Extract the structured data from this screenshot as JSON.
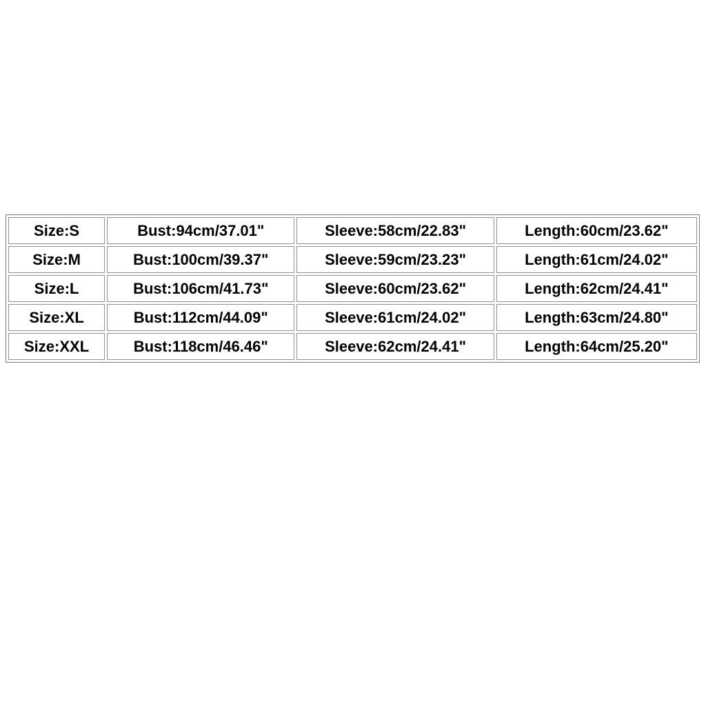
{
  "colors": {
    "page_bg": "#ffffff",
    "text_color": "#000000",
    "cell_border": "#8f8f8f",
    "outer_border": "#7d7d7d"
  },
  "size_chart": {
    "columns": [
      "size",
      "bust",
      "sleeve",
      "length"
    ],
    "rows": [
      {
        "cells": [
          "Size:S",
          "Bust:94cm/37.01\"",
          "Sleeve:58cm/22.83\"",
          "Length:60cm/23.62\""
        ]
      },
      {
        "cells": [
          "Size:M",
          "Bust:100cm/39.37\"",
          "Sleeve:59cm/23.23\"",
          "Length:61cm/24.02\""
        ]
      },
      {
        "cells": [
          "Size:L",
          "Bust:106cm/41.73\"",
          "Sleeve:60cm/23.62\"",
          "Length:62cm/24.41\""
        ]
      },
      {
        "cells": [
          "Size:XL",
          "Bust:112cm/44.09\"",
          "Sleeve:61cm/24.02\"",
          "Length:63cm/24.80\""
        ]
      },
      {
        "cells": [
          "Size:XXL",
          "Bust:118cm/46.46\"",
          "Sleeve:62cm/24.41\"",
          "Length:64cm/25.20\""
        ]
      }
    ]
  }
}
